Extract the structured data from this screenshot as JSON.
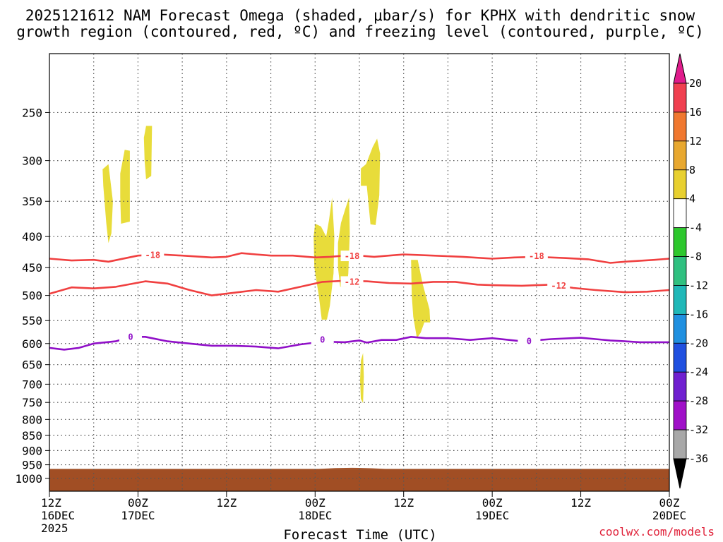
{
  "chart_data": {
    "type": "contour-timeheight",
    "title_line1": "2025121612 NAM Forecast Omega (shaded, μbar/s) for KPHX with dendritic snow",
    "title_line2": "growth region (contoured, red, ºC) and freezing level (contoured, purple, ºC)",
    "xlabel": "Forecast Time (UTC)",
    "credit": "coolwx.com/models",
    "x_range_hours": [
      0,
      84
    ],
    "x_ticks": [
      {
        "h": 0,
        "lines": [
          "12Z",
          "16DEC",
          "2025"
        ]
      },
      {
        "h": 12,
        "lines": [
          "00Z",
          "17DEC"
        ]
      },
      {
        "h": 24,
        "lines": [
          "12Z"
        ]
      },
      {
        "h": 36,
        "lines": [
          "00Z",
          "18DEC"
        ]
      },
      {
        "h": 48,
        "lines": [
          "12Z"
        ]
      },
      {
        "h": 60,
        "lines": [
          "00Z",
          "19DEC"
        ]
      },
      {
        "h": 72,
        "lines": [
          "12Z"
        ]
      },
      {
        "h": 84,
        "lines": [
          "00Z",
          "20DEC"
        ]
      }
    ],
    "y_ticks_hpa": [
      250,
      300,
      350,
      400,
      450,
      500,
      550,
      600,
      650,
      700,
      750,
      800,
      850,
      900,
      950,
      1000
    ],
    "y_range_hpa": [
      200,
      1050
    ],
    "terrain_top_hpa": 965,
    "colorbar": {
      "labels": [
        "20",
        "16",
        "12",
        "8",
        "4",
        "-4",
        "-8",
        "-12",
        "-16",
        "-20",
        "-24",
        "-28",
        "-32",
        "-36"
      ],
      "colors": [
        "#f04050",
        "#f07830",
        "#e8a830",
        "#e8d030",
        "#ffffff",
        "#2ec82e",
        "#30c080",
        "#20b8b8",
        "#2090e0",
        "#2050e0",
        "#7020d0",
        "#a010c8",
        "#a8a8a8"
      ],
      "top_arrow_color": "#e01c8c",
      "bottom_arrow_color": "#000000"
    },
    "contours": [
      {
        "name": "-18",
        "color": "#f04040",
        "points": [
          [
            0,
            435
          ],
          [
            3,
            438
          ],
          [
            6,
            437
          ],
          [
            8,
            440
          ],
          [
            12,
            430
          ],
          [
            15,
            428
          ],
          [
            18,
            430
          ],
          [
            22,
            433
          ],
          [
            24,
            432
          ],
          [
            26,
            426
          ],
          [
            28,
            428
          ],
          [
            30,
            430
          ],
          [
            33,
            430
          ],
          [
            36,
            433
          ],
          [
            38,
            432
          ],
          [
            40,
            430
          ],
          [
            42,
            430
          ],
          [
            44,
            432
          ],
          [
            46,
            430
          ],
          [
            48,
            428
          ],
          [
            52,
            430
          ],
          [
            56,
            432
          ],
          [
            60,
            435
          ],
          [
            63,
            433
          ],
          [
            66,
            432
          ],
          [
            70,
            434
          ],
          [
            73,
            436
          ],
          [
            76,
            442
          ],
          [
            78,
            440
          ],
          [
            82,
            437
          ],
          [
            84,
            435
          ]
        ],
        "labels": [
          [
            14,
            429
          ],
          [
            41,
            431
          ],
          [
            66,
            431
          ]
        ]
      },
      {
        "name": "-12",
        "color": "#f04040",
        "points": [
          [
            0,
            497
          ],
          [
            3,
            485
          ],
          [
            6,
            487
          ],
          [
            9,
            484
          ],
          [
            13,
            474
          ],
          [
            16,
            478
          ],
          [
            19,
            490
          ],
          [
            22,
            500
          ],
          [
            25,
            495
          ],
          [
            28,
            490
          ],
          [
            31,
            493
          ],
          [
            34,
            484
          ],
          [
            37,
            475
          ],
          [
            40,
            473
          ],
          [
            43,
            474
          ],
          [
            46,
            477
          ],
          [
            49,
            478
          ],
          [
            52,
            475
          ],
          [
            55,
            475
          ],
          [
            58,
            480
          ],
          [
            60,
            481
          ],
          [
            64,
            482
          ],
          [
            68,
            480
          ],
          [
            71,
            486
          ],
          [
            74,
            490
          ],
          [
            78,
            494
          ],
          [
            81,
            493
          ],
          [
            84,
            490
          ]
        ],
        "labels": [
          [
            41,
            475
          ],
          [
            69,
            482
          ]
        ]
      },
      {
        "name": "0",
        "color": "#9010c8",
        "points": [
          [
            0,
            610
          ],
          [
            2,
            614
          ],
          [
            4,
            610
          ],
          [
            6,
            600
          ],
          [
            9,
            595
          ],
          [
            11,
            585
          ],
          [
            13,
            585
          ],
          [
            16,
            595
          ],
          [
            19,
            600
          ],
          [
            22,
            605
          ],
          [
            25,
            605
          ],
          [
            28,
            607
          ],
          [
            31,
            611
          ],
          [
            34,
            602
          ],
          [
            36,
            598
          ],
          [
            38,
            596
          ],
          [
            40,
            597
          ],
          [
            42,
            593
          ],
          [
            43,
            598
          ],
          [
            45,
            592
          ],
          [
            47,
            592
          ],
          [
            49,
            585
          ],
          [
            51,
            588
          ],
          [
            54,
            588
          ],
          [
            57,
            592
          ],
          [
            60,
            588
          ],
          [
            64,
            595
          ],
          [
            68,
            590
          ],
          [
            72,
            587
          ],
          [
            74,
            590
          ],
          [
            76,
            593
          ],
          [
            78,
            595
          ],
          [
            80,
            597
          ],
          [
            84,
            597
          ]
        ],
        "labels": [
          [
            11,
            585
          ],
          [
            37,
            592
          ],
          [
            65,
            595
          ]
        ]
      }
    ],
    "omega_patches": [
      {
        "color": "#e8dc3a",
        "points": [
          [
            7.2,
            310
          ],
          [
            8.0,
            304
          ],
          [
            8.6,
            350
          ],
          [
            8.4,
            395
          ],
          [
            8.0,
            410
          ],
          [
            7.7,
            380
          ],
          [
            7.3,
            330
          ]
        ]
      },
      {
        "color": "#e8dc3a",
        "points": [
          [
            9.6,
            315
          ],
          [
            10.2,
            288
          ],
          [
            10.9,
            289
          ],
          [
            10.9,
            378
          ],
          [
            9.7,
            381
          ],
          [
            9.6,
            345
          ]
        ]
      },
      {
        "color": "#e8dc3a",
        "points": [
          [
            12.8,
            275
          ],
          [
            13.1,
            263
          ],
          [
            13.9,
            263
          ],
          [
            13.8,
            318
          ],
          [
            13.1,
            322
          ],
          [
            12.9,
            300
          ]
        ]
      },
      {
        "color": "#e8dc3a",
        "points": [
          [
            35.8,
            400
          ],
          [
            36.0,
            381
          ],
          [
            36.8,
            385
          ],
          [
            37.5,
            400
          ],
          [
            37.9,
            375
          ],
          [
            38.3,
            345
          ],
          [
            38.6,
            400
          ],
          [
            38.5,
            460
          ],
          [
            38.0,
            520
          ],
          [
            37.6,
            548
          ],
          [
            36.9,
            548
          ],
          [
            36.5,
            500
          ],
          [
            35.9,
            450
          ]
        ]
      },
      {
        "color": "#e8dc3a",
        "points": [
          [
            39.1,
            410
          ],
          [
            39.5,
            380
          ],
          [
            40.1,
            360
          ],
          [
            40.6,
            345
          ],
          [
            40.7,
            395
          ],
          [
            40.5,
            460
          ],
          [
            40.3,
            484
          ],
          [
            39.4,
            484
          ],
          [
            39.1,
            450
          ]
        ]
      },
      {
        "color": "#e8dc3a",
        "points": [
          [
            42.2,
            309
          ],
          [
            42.9,
            304
          ],
          [
            43.8,
            285
          ],
          [
            44.4,
            276
          ],
          [
            44.8,
            292
          ],
          [
            44.7,
            342
          ],
          [
            44.2,
            383
          ],
          [
            43.5,
            382
          ],
          [
            43.0,
            330
          ],
          [
            42.2,
            330
          ]
        ]
      },
      {
        "color": "#e8dc3a",
        "points": [
          [
            49.0,
            437
          ],
          [
            49.9,
            437
          ],
          [
            50.6,
            480
          ],
          [
            51.5,
            527
          ],
          [
            51.6,
            554
          ],
          [
            50.8,
            554
          ],
          [
            50.3,
            576
          ],
          [
            49.8,
            588
          ],
          [
            49.3,
            542
          ],
          [
            49.1,
            500
          ]
        ]
      },
      {
        "color": "#e8dc3a",
        "points": [
          [
            42.2,
            640
          ],
          [
            42.5,
            622
          ],
          [
            42.6,
            680
          ],
          [
            42.5,
            752
          ],
          [
            42.2,
            740
          ],
          [
            42.1,
            690
          ]
        ]
      }
    ]
  }
}
